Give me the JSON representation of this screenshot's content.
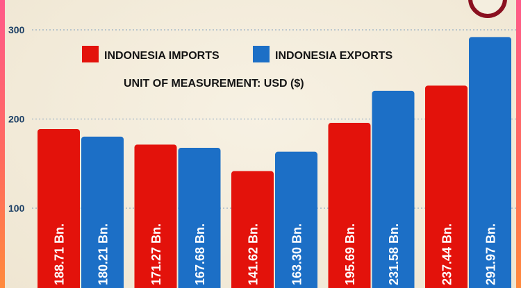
{
  "colors": {
    "imports": "#e3120b",
    "exports": "#1c6fc6",
    "gridline": "#7f9fbf",
    "tick_text": "#1e4166",
    "border_gradient": [
      "#ff5a8a",
      "#ff8a3c"
    ],
    "logo_ring": "#8a1020"
  },
  "chart_data": {
    "type": "bar",
    "title": "",
    "xlabel": "",
    "ylabel": "",
    "unit_note": "UNIT OF MEASUREMENT: USD ($)",
    "ylim": [
      0,
      300
    ],
    "yticks": [
      100,
      200,
      300
    ],
    "grid": true,
    "legend_position": "top-center",
    "categories": [
      "",
      "",
      "",
      "",
      ""
    ],
    "series": [
      {
        "name": "INDONESIA IMPORTS",
        "color": "#e3120b",
        "values": [
          188.71,
          171.27,
          141.62,
          195.69,
          237.44
        ],
        "labels": [
          "188.71 Bn.",
          "171.27 Bn.",
          "141.62 Bn.",
          "195.69 Bn.",
          "237.44 Bn."
        ]
      },
      {
        "name": "INDONESIA EXPORTS",
        "color": "#1c6fc6",
        "values": [
          180.21,
          167.68,
          163.3,
          231.58,
          291.97
        ],
        "labels": [
          "180.21 Bn.",
          "167.68 Bn.",
          "163.30 Bn.",
          "231.58 Bn.",
          "291.97 Bn."
        ]
      }
    ]
  }
}
